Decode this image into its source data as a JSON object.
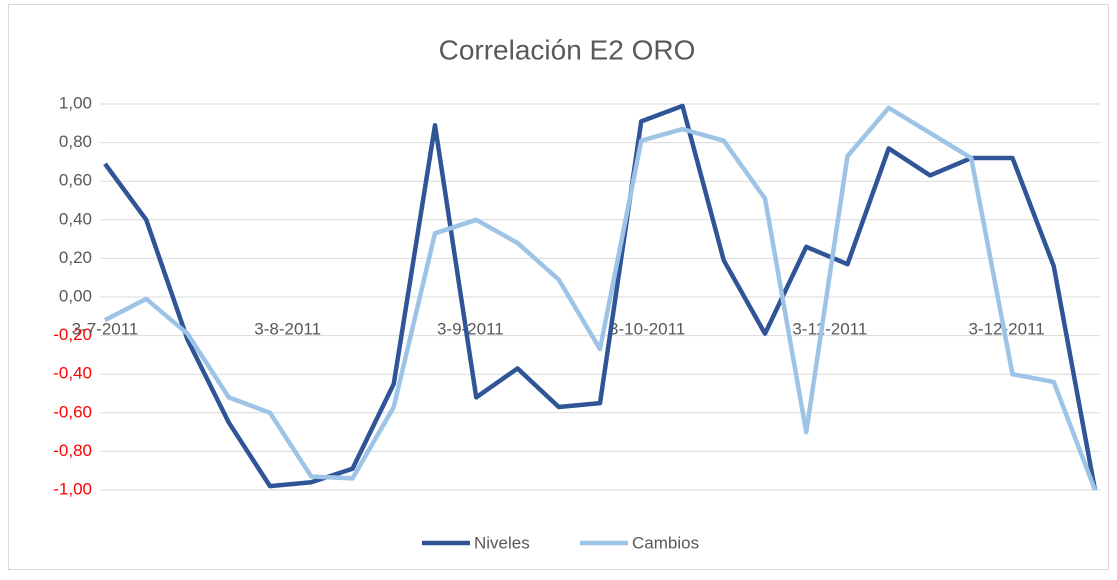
{
  "chart_data": {
    "type": "line",
    "title": "Correlación E2 ORO",
    "x": [
      "2011-07-03",
      "2011-07-10",
      "2011-07-17",
      "2011-07-24",
      "2011-07-31",
      "2011-08-07",
      "2011-08-14",
      "2011-08-21",
      "2011-08-28",
      "2011-09-04",
      "2011-09-11",
      "2011-09-18",
      "2011-09-25",
      "2011-10-02",
      "2011-10-09",
      "2011-10-16",
      "2011-10-23",
      "2011-10-30",
      "2011-11-06",
      "2011-11-13",
      "2011-11-20",
      "2011-11-27",
      "2011-12-04",
      "2011-12-11",
      "2011-12-18"
    ],
    "series": [
      {
        "name": "Niveles",
        "color": "#2f5597",
        "values": [
          0.69,
          0.4,
          -0.22,
          -0.65,
          -0.98,
          -0.96,
          -0.89,
          -0.45,
          0.89,
          -0.52,
          -0.37,
          -0.57,
          -0.55,
          0.91,
          0.99,
          0.19,
          -0.19,
          0.26,
          0.17,
          0.77,
          0.63,
          0.72,
          0.72,
          0.16,
          -1.0
        ]
      },
      {
        "name": "Cambios",
        "color": "#9dc3e6",
        "values": [
          -0.12,
          -0.01,
          -0.19,
          -0.52,
          -0.6,
          -0.93,
          -0.94,
          -0.57,
          0.33,
          0.4,
          0.28,
          0.09,
          -0.27,
          0.81,
          0.87,
          0.81,
          0.51,
          -0.7,
          0.73,
          0.98,
          0.85,
          0.72,
          -0.4,
          -0.44,
          -1.0
        ]
      }
    ],
    "xlim": [
      "2011-07-03",
      "2011-12-18"
    ],
    "xticks": [
      {
        "value": "2011-07-03",
        "label": "3-7-2011"
      },
      {
        "value": "2011-08-03",
        "label": "3-8-2011"
      },
      {
        "value": "2011-09-03",
        "label": "3-9-2011"
      },
      {
        "value": "2011-10-03",
        "label": "3-10-2011"
      },
      {
        "value": "2011-11-03",
        "label": "3-11-2011"
      },
      {
        "value": "2011-12-03",
        "label": "3-12-2011"
      }
    ],
    "ylim": [
      -1,
      1
    ],
    "yticks": [
      {
        "value": -1,
        "label": "-1,00"
      },
      {
        "value": -0.8,
        "label": "-0,80"
      },
      {
        "value": -0.6,
        "label": "-0,60"
      },
      {
        "value": -0.4,
        "label": "-0,40"
      },
      {
        "value": -0.2,
        "label": "-0,20"
      },
      {
        "value": 0,
        "label": "0,00"
      },
      {
        "value": 0.2,
        "label": "0,20"
      },
      {
        "value": 0.4,
        "label": "0,40"
      },
      {
        "value": 0.6,
        "label": "0,60"
      },
      {
        "value": 0.8,
        "label": "0,80"
      },
      {
        "value": 1,
        "label": "1,00"
      }
    ],
    "negative_tick_color": "#ff0000",
    "grid": true,
    "legend": "bottom"
  }
}
